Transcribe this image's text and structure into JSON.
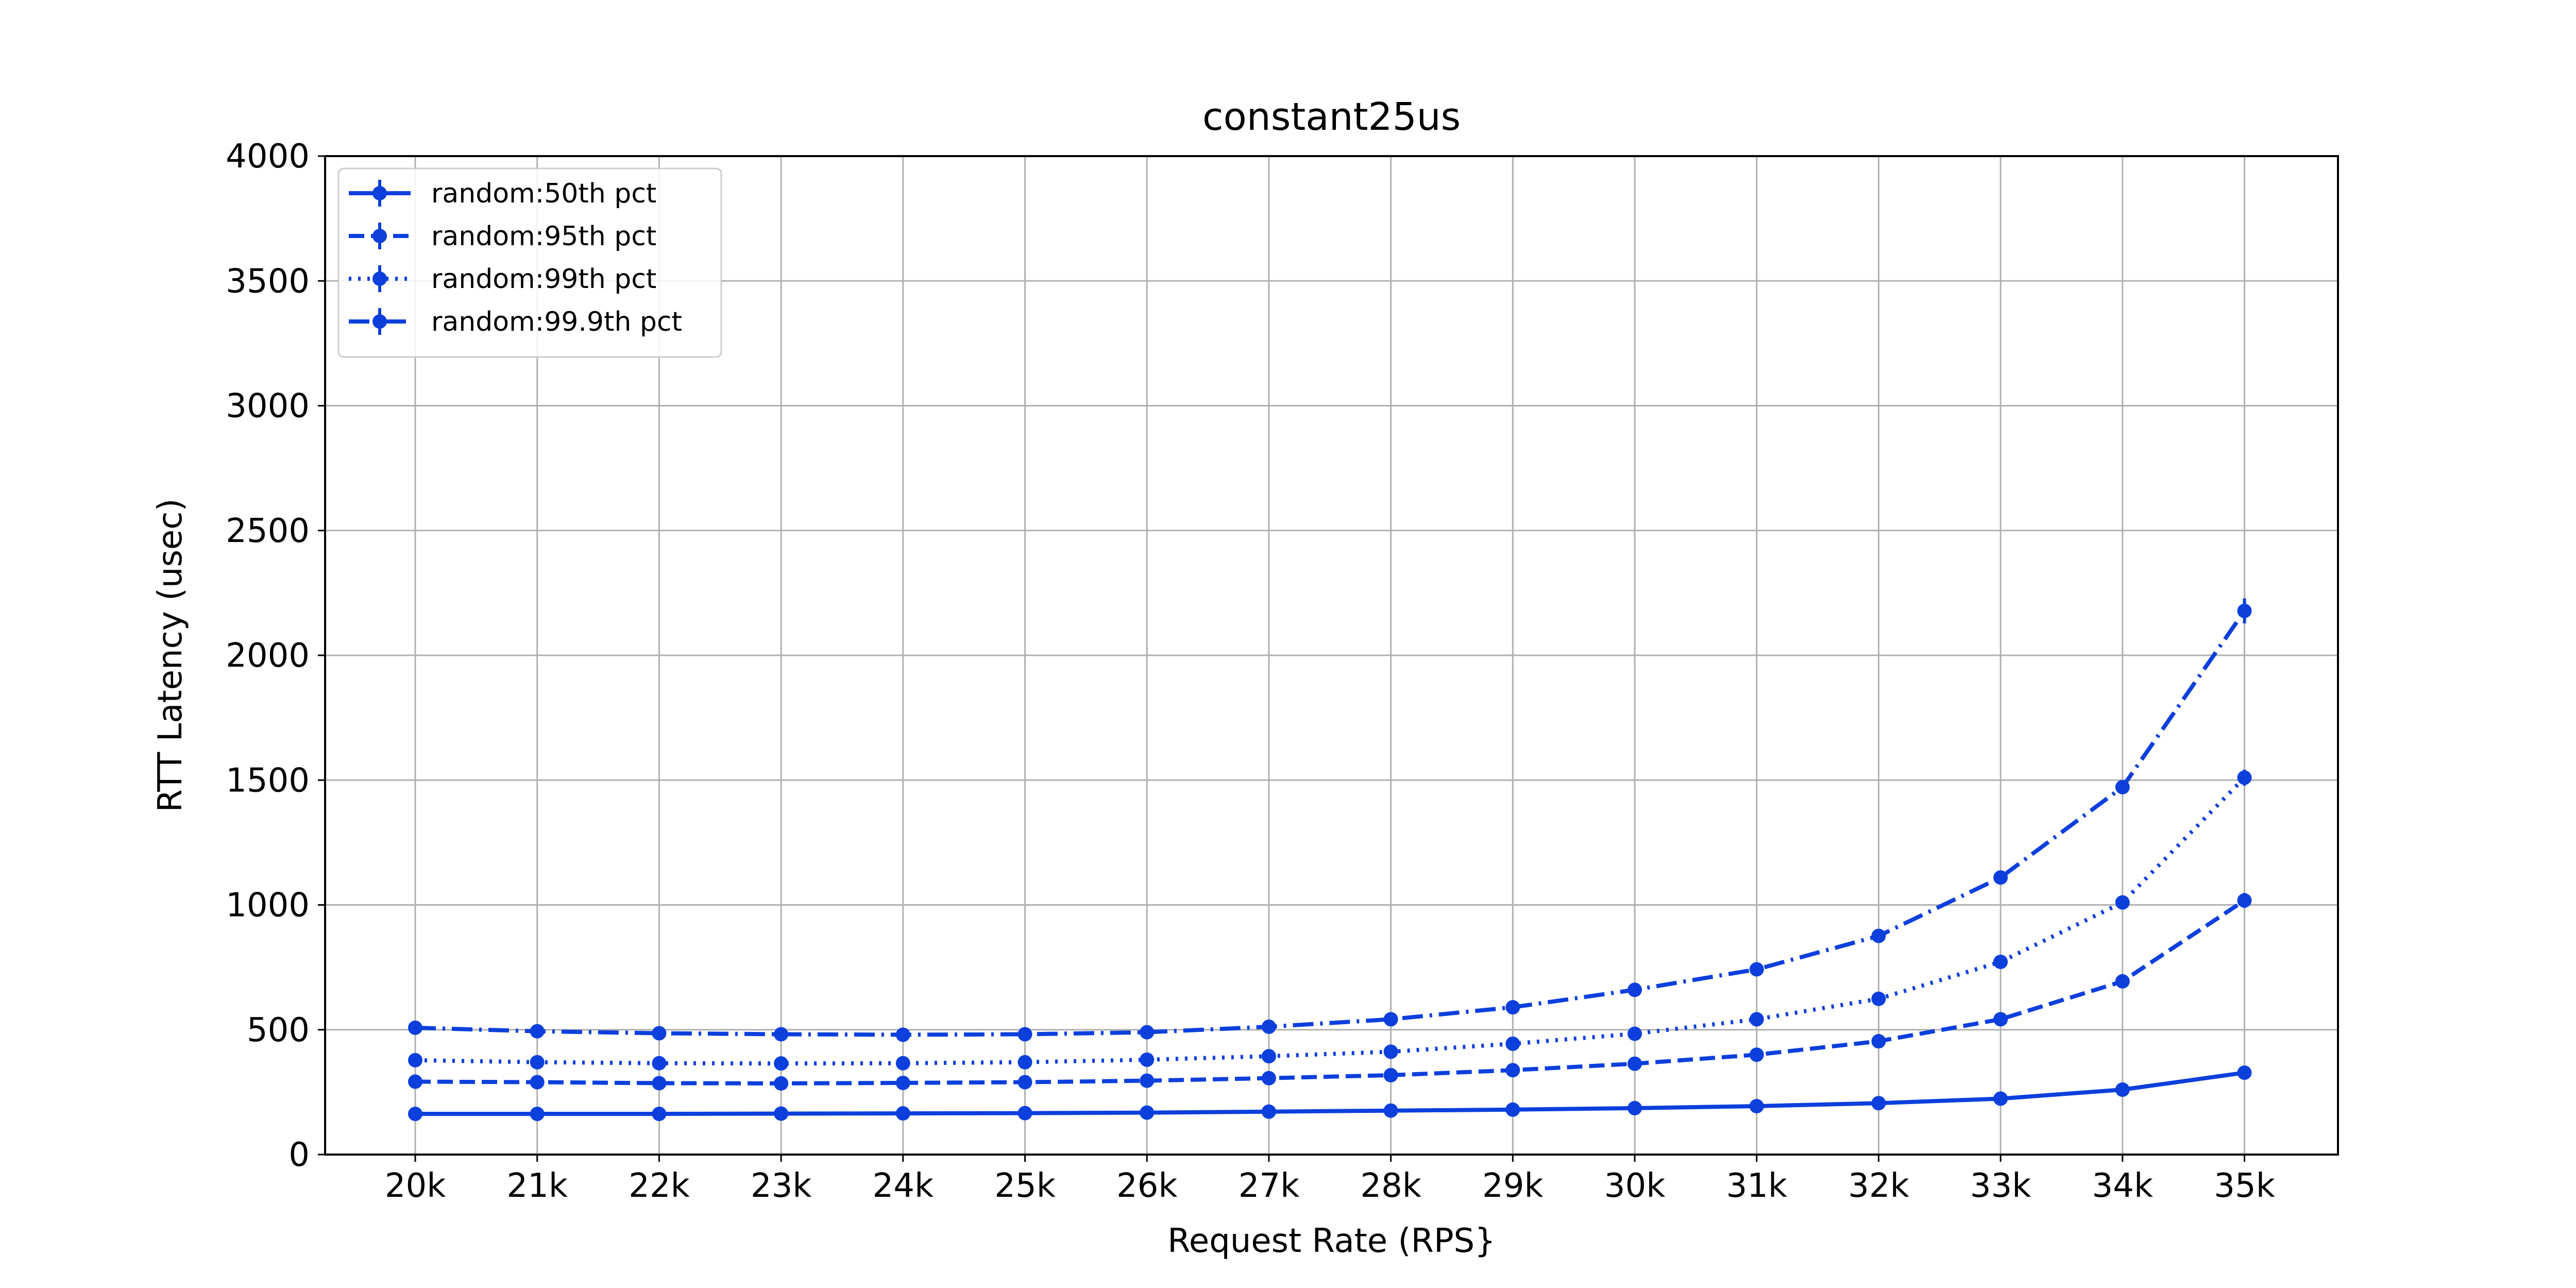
{
  "chart_data": {
    "type": "line",
    "title": "constant25us",
    "xlabel": "Request Rate (RPS}",
    "ylabel": "RTT Latency (usec)",
    "categories": [
      "20k",
      "21k",
      "22k",
      "23k",
      "24k",
      "25k",
      "26k",
      "27k",
      "28k",
      "29k",
      "30k",
      "31k",
      "32k",
      "33k",
      "34k",
      "35k"
    ],
    "ylim": [
      0,
      4000
    ],
    "yticks": [
      0,
      500,
      1000,
      1500,
      2000,
      2500,
      3000,
      3500,
      4000
    ],
    "grid": true,
    "legend_position": "upper-left",
    "color": "#0c3fdc",
    "series": [
      {
        "name": "random:50th pct",
        "linestyle": "solid",
        "values": [
          163,
          163,
          163,
          164,
          165,
          166,
          168,
          172,
          176,
          180,
          186,
          194,
          206,
          224,
          260,
          328
        ],
        "errors": [
          5,
          5,
          5,
          5,
          5,
          5,
          5,
          5,
          5,
          5,
          5,
          5,
          5,
          6,
          8,
          10
        ]
      },
      {
        "name": "random:95th pct",
        "linestyle": "dashed",
        "values": [
          292,
          290,
          286,
          285,
          287,
          290,
          296,
          306,
          318,
          338,
          364,
          400,
          454,
          542,
          694,
          1018
        ],
        "errors": [
          6,
          6,
          6,
          6,
          6,
          6,
          6,
          6,
          6,
          7,
          8,
          8,
          10,
          12,
          16,
          30
        ]
      },
      {
        "name": "random:99th pct",
        "linestyle": "dotted",
        "values": [
          378,
          370,
          366,
          365,
          366,
          370,
          380,
          394,
          412,
          444,
          484,
          542,
          624,
          772,
          1010,
          1510
        ],
        "errors": [
          8,
          8,
          8,
          8,
          8,
          8,
          8,
          8,
          8,
          9,
          10,
          10,
          12,
          14,
          18,
          32
        ]
      },
      {
        "name": "random:99.9th pct",
        "linestyle": "dashdot",
        "values": [
          508,
          494,
          486,
          482,
          480,
          482,
          490,
          512,
          542,
          590,
          660,
          742,
          876,
          1110,
          1472,
          2178
        ],
        "errors": [
          10,
          10,
          10,
          10,
          10,
          10,
          10,
          10,
          10,
          10,
          12,
          14,
          16,
          20,
          24,
          50
        ]
      }
    ]
  }
}
